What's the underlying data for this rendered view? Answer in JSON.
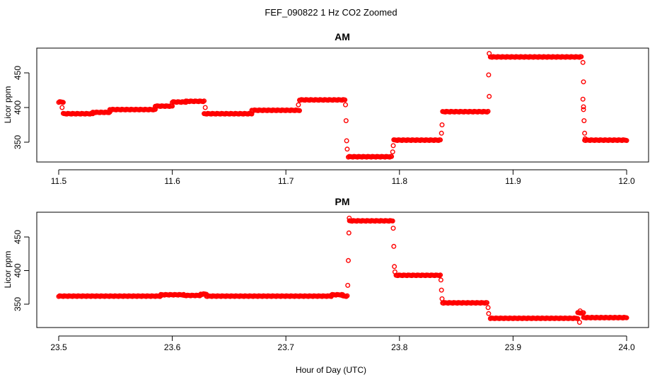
{
  "chart_data": [
    {
      "type": "scatter",
      "title": "FEF_090822  1 Hz CO2 Zoomed",
      "panel_title": "AM",
      "xlabel": "",
      "ylabel": "Licor ppm",
      "xlim": [
        11.5,
        12.0
      ],
      "ylim": [
        322,
        482
      ],
      "x_ticks": [
        "11.5",
        "11.6",
        "11.7",
        "11.8",
        "11.9",
        "12.0"
      ],
      "y_ticks": [
        "350",
        "400",
        "450"
      ],
      "marker": "open-circle",
      "color": "#ff0000",
      "segments": [
        {
          "x": [
            11.5,
            11.504
          ],
          "y": 408
        },
        {
          "x": [
            11.504,
            11.53
          ],
          "y": 391
        },
        {
          "x": [
            11.53,
            11.545
          ],
          "y": 393
        },
        {
          "x": [
            11.545,
            11.585
          ],
          "y": 397
        },
        {
          "x": [
            11.585,
            11.6
          ],
          "y": 402
        },
        {
          "x": [
            11.6,
            11.612
          ],
          "y": 408
        },
        {
          "x": [
            11.612,
            11.628
          ],
          "y": 409
        },
        {
          "x": [
            11.628,
            11.67
          ],
          "y": 391
        },
        {
          "x": [
            11.67,
            11.712
          ],
          "y": 396
        },
        {
          "x": [
            11.712,
            11.752
          ],
          "y": 411
        },
        {
          "x": [
            11.755,
            11.793
          ],
          "y": 329
        },
        {
          "x": [
            11.795,
            11.836
          ],
          "y": 353
        },
        {
          "x": [
            11.838,
            11.878
          ],
          "y": 394
        },
        {
          "x": [
            11.88,
            11.96
          ],
          "y": 473
        },
        {
          "x": [
            11.963,
            12.0
          ],
          "y": 353
        }
      ],
      "transition_points": [
        {
          "x": 11.503,
          "y": 400
        },
        {
          "x": 11.629,
          "y": 400
        },
        {
          "x": 11.711,
          "y": 404
        },
        {
          "x": 11.7525,
          "y": 404
        },
        {
          "x": 11.753,
          "y": 381
        },
        {
          "x": 11.7535,
          "y": 352
        },
        {
          "x": 11.754,
          "y": 340
        },
        {
          "x": 11.794,
          "y": 336
        },
        {
          "x": 11.7945,
          "y": 345
        },
        {
          "x": 11.837,
          "y": 363
        },
        {
          "x": 11.8375,
          "y": 375
        },
        {
          "x": 11.8785,
          "y": 447
        },
        {
          "x": 11.879,
          "y": 416
        },
        {
          "x": 11.879,
          "y": 478
        },
        {
          "x": 11.9615,
          "y": 465
        },
        {
          "x": 11.962,
          "y": 437
        },
        {
          "x": 11.9615,
          "y": 412
        },
        {
          "x": 11.962,
          "y": 401
        },
        {
          "x": 11.962,
          "y": 397
        },
        {
          "x": 11.9625,
          "y": 381
        },
        {
          "x": 11.963,
          "y": 363
        },
        {
          "x": 11.9635,
          "y": 355
        }
      ]
    },
    {
      "type": "scatter",
      "panel_title": "PM",
      "xlabel": "Hour of Day (UTC)",
      "ylabel": "Licor ppm",
      "xlim": [
        23.5,
        24.0
      ],
      "ylim": [
        315,
        482
      ],
      "x_ticks": [
        "23.5",
        "23.6",
        "23.7",
        "23.8",
        "23.9",
        "24.0"
      ],
      "y_ticks": [
        "350",
        "400",
        "450"
      ],
      "marker": "open-circle",
      "color": "#ff0000",
      "segments": [
        {
          "x": [
            23.5,
            23.59
          ],
          "y": 362
        },
        {
          "x": [
            23.59,
            23.61
          ],
          "y": 364
        },
        {
          "x": [
            23.61,
            23.625
          ],
          "y": 363
        },
        {
          "x": [
            23.625,
            23.63
          ],
          "y": 365
        },
        {
          "x": [
            23.63,
            23.74
          ],
          "y": 362
        },
        {
          "x": [
            23.74,
            23.75
          ],
          "y": 364
        },
        {
          "x": [
            23.75,
            23.754
          ],
          "y": 362
        },
        {
          "x": [
            23.756,
            23.794
          ],
          "y": 474
        },
        {
          "x": [
            23.797,
            23.836
          ],
          "y": 393
        },
        {
          "x": [
            23.838,
            23.877
          ],
          "y": 352
        },
        {
          "x": [
            23.88,
            23.957
          ],
          "y": 329
        },
        {
          "x": [
            23.957,
            23.962
          ],
          "y": 337
        },
        {
          "x": [
            23.962,
            24.0
          ],
          "y": 330
        }
      ],
      "transition_points": [
        {
          "x": 23.7545,
          "y": 378
        },
        {
          "x": 23.755,
          "y": 415
        },
        {
          "x": 23.7555,
          "y": 456
        },
        {
          "x": 23.7558,
          "y": 478
        },
        {
          "x": 23.7945,
          "y": 463
        },
        {
          "x": 23.795,
          "y": 436
        },
        {
          "x": 23.7955,
          "y": 406
        },
        {
          "x": 23.796,
          "y": 398
        },
        {
          "x": 23.8365,
          "y": 386
        },
        {
          "x": 23.837,
          "y": 371
        },
        {
          "x": 23.8375,
          "y": 358
        },
        {
          "x": 23.878,
          "y": 345
        },
        {
          "x": 23.8785,
          "y": 336
        },
        {
          "x": 23.9585,
          "y": 323
        },
        {
          "x": 23.959,
          "y": 340
        }
      ]
    }
  ]
}
